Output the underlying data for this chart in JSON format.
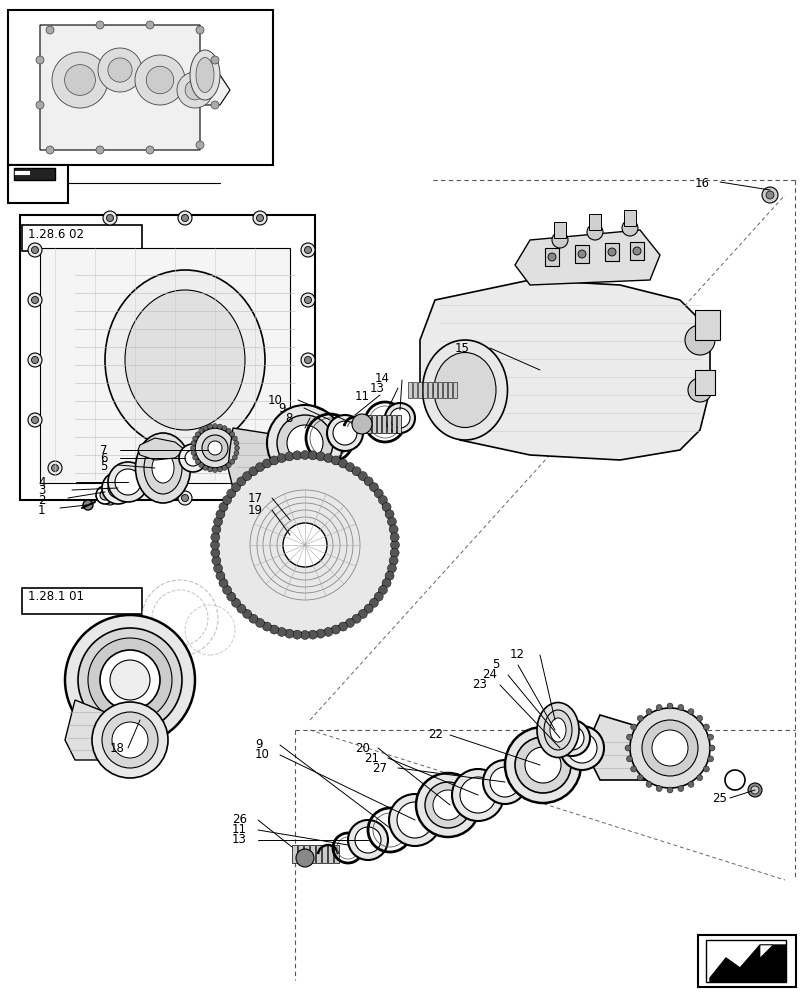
{
  "bg_color": "#ffffff",
  "fig_width": 8.12,
  "fig_height": 10.0,
  "dpi": 100,
  "line_color": "#000000",
  "light_line": "#888888",
  "dashed_color": "#555555",
  "label_fontsize": 8.5,
  "ref_fontsize": 8.0
}
